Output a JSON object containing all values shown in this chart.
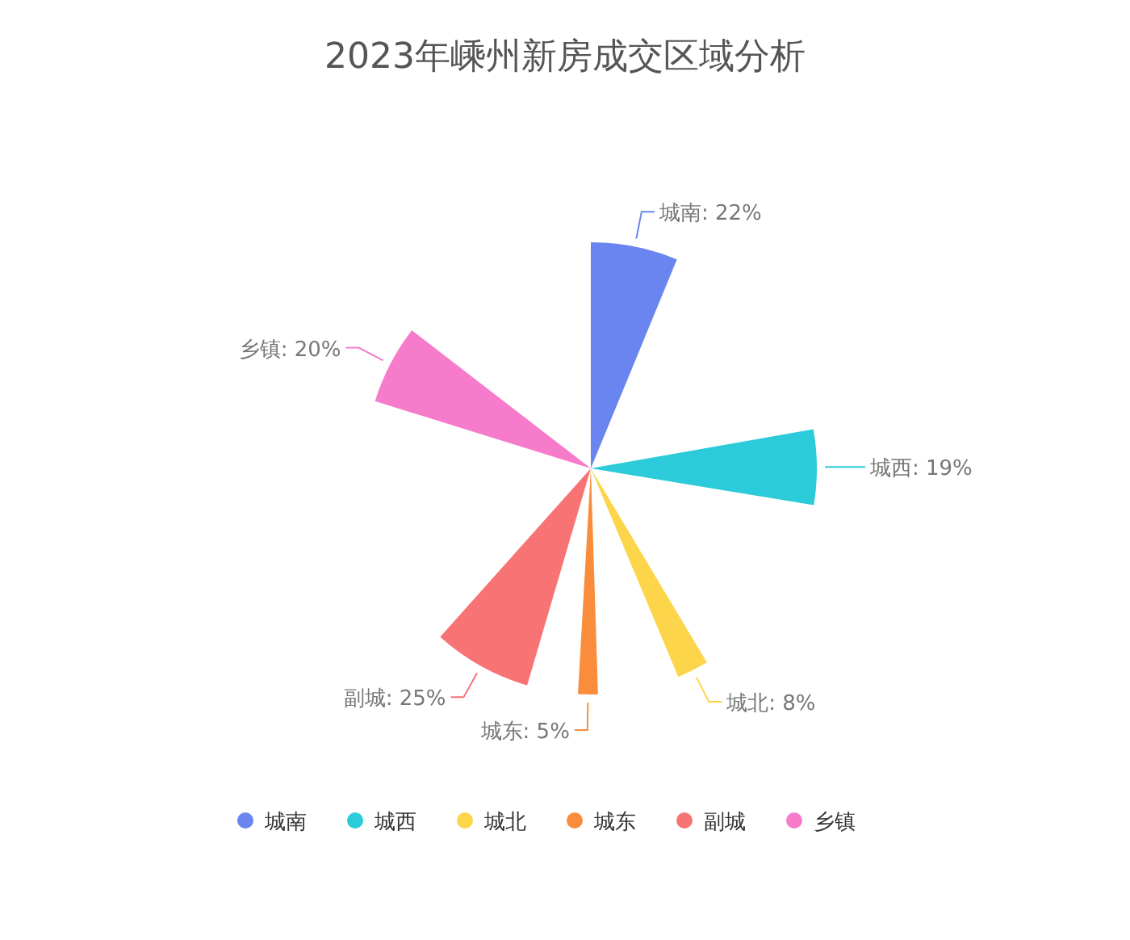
{
  "chart_data": {
    "type": "pie",
    "title": "2023年嵊州新房成交区域分析",
    "categories": [
      "城南",
      "城西",
      "城北",
      "城东",
      "副城",
      "乡镇"
    ],
    "values": [
      22,
      19,
      8,
      5,
      25,
      20
    ],
    "value_labels": [
      "城南: 22%",
      "城西: 19%",
      "城北: 8%",
      "城东: 5%",
      "副城: 25%",
      "乡镇: 20%"
    ],
    "colors": [
      "#6a85f0",
      "#2bcbd9",
      "#fdd54a",
      "#f98d3b",
      "#f87474",
      "#f77bcb"
    ],
    "legend": "bottom"
  }
}
